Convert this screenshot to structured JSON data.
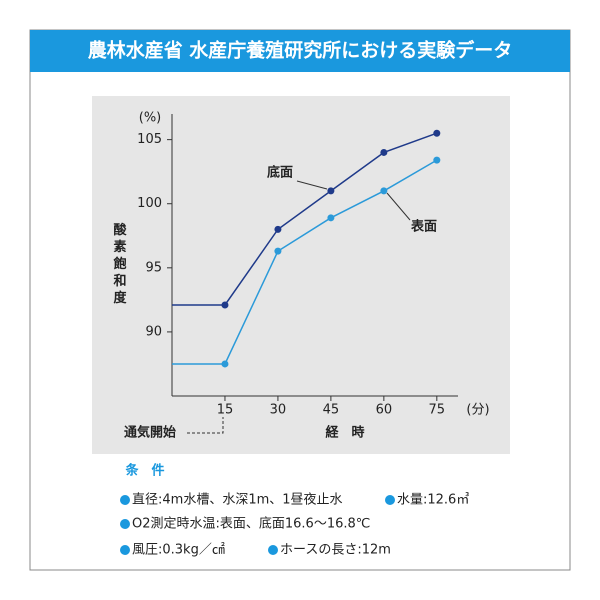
{
  "header": {
    "title": "農林水産省 水産庁養殖研究所における実験データ"
  },
  "chart_data": {
    "type": "line",
    "y_label": "酸素飽和度",
    "y_unit": "(%)",
    "x_unit": "(分)",
    "x_label": "経　時",
    "annotation": "通気開始",
    "x": [
      0,
      15,
      30,
      45,
      60,
      75
    ],
    "series": [
      {
        "name": "底面",
        "color": "#1f3a8a",
        "values": [
          92.1,
          92.1,
          98,
          101,
          104,
          105.5
        ]
      },
      {
        "name": "表面",
        "color": "#2b9ad9",
        "values": [
          87.5,
          87.5,
          96.3,
          98.9,
          101,
          103.4
        ]
      }
    ],
    "xlim": [
      0,
      81
    ],
    "ylim": [
      85,
      107
    ],
    "xticks": [
      15,
      30,
      45,
      60,
      75
    ],
    "yticks": [
      90,
      95,
      100,
      105
    ]
  },
  "conditions": {
    "title": "条　件",
    "items": [
      "直径:4m水槽、水深1m、1昼夜止水",
      "水量:12.6㎥",
      "O2測定時水温:表面、底面16.6〜16.8℃",
      "風圧:0.3kg／㎠",
      "ホースの長さ:12m"
    ]
  }
}
